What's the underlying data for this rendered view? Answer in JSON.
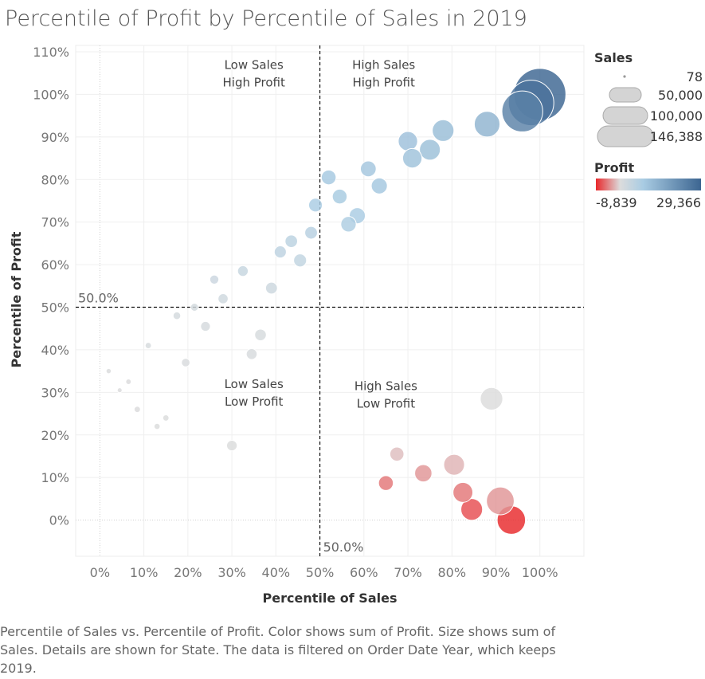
{
  "page": {
    "title": "Percentile of Profit by Percentile of Sales in 2019",
    "caption": "Percentile of Sales vs. Percentile of Profit.  Color shows sum of Profit.  Size shows sum of Sales.  Details are shown for State. The data is filtered on Order Date Year, which keeps 2019."
  },
  "legend": {
    "sales_title": "Sales",
    "sales_labels": [
      "78",
      "50,000",
      "100,000",
      "146,388"
    ],
    "profit_title": "Profit",
    "profit_min_label": "-8,839",
    "profit_max_label": "29,366"
  },
  "colors": {
    "negative": "#e8282b",
    "neutral": "#dcdcdc",
    "light_blue": "#a9cce3",
    "dark_blue": "#3c6591"
  },
  "chart_data": {
    "type": "scatter",
    "title": "Percentile of Profit by Percentile of Sales in 2019",
    "xlabel": "Percentile of Sales",
    "ylabel": "Percentile of Profit",
    "xlim": [
      -0.055,
      1.1
    ],
    "ylim": [
      -0.085,
      1.115
    ],
    "x_ticks": [
      "0%",
      "10%",
      "20%",
      "30%",
      "40%",
      "50%",
      "60%",
      "70%",
      "80%",
      "90%",
      "100%"
    ],
    "y_ticks": [
      "0%",
      "10%",
      "20%",
      "30%",
      "40%",
      "50%",
      "60%",
      "70%",
      "80%",
      "90%",
      "100%",
      "110%"
    ],
    "reference_lines": [
      {
        "axis": "x",
        "value": 0.5,
        "label": "50.0%"
      },
      {
        "axis": "y",
        "value": 0.5,
        "label": "50.0%"
      }
    ],
    "quadrant_labels": [
      {
        "line1": "Low Sales",
        "line2": "High Profit",
        "x": 0.35,
        "y": 1.06
      },
      {
        "line1": "High Sales",
        "line2": "High Profit",
        "x": 0.645,
        "y": 1.06
      },
      {
        "line1": "Low Sales",
        "line2": "Low Profit",
        "x": 0.35,
        "y": 0.31
      },
      {
        "line1": "High Sales",
        "line2": "Low Profit",
        "x": 0.65,
        "y": 0.305
      }
    ],
    "profit_range": [
      -8839,
      29366
    ],
    "sales_range": [
      78,
      146388
    ],
    "points": [
      {
        "x": 1.0,
        "y": 1.0,
        "sales": 146388,
        "profit": 29366
      },
      {
        "x": 0.98,
        "y": 0.98,
        "sales": 110000,
        "profit": 26000
      },
      {
        "x": 0.96,
        "y": 0.96,
        "sales": 88000,
        "profit": 22000
      },
      {
        "x": 0.88,
        "y": 0.93,
        "sales": 32000,
        "profit": 9000
      },
      {
        "x": 0.78,
        "y": 0.915,
        "sales": 22000,
        "profit": 6500
      },
      {
        "x": 0.7,
        "y": 0.89,
        "sales": 17000,
        "profit": 5500
      },
      {
        "x": 0.75,
        "y": 0.87,
        "sales": 20000,
        "profit": 6000
      },
      {
        "x": 0.71,
        "y": 0.85,
        "sales": 17000,
        "profit": 5000
      },
      {
        "x": 0.61,
        "y": 0.825,
        "sales": 10500,
        "profit": 4000
      },
      {
        "x": 0.52,
        "y": 0.805,
        "sales": 9000,
        "profit": 3500
      },
      {
        "x": 0.635,
        "y": 0.785,
        "sales": 11000,
        "profit": 3800
      },
      {
        "x": 0.545,
        "y": 0.76,
        "sales": 9000,
        "profit": 3000
      },
      {
        "x": 0.49,
        "y": 0.74,
        "sales": 7500,
        "profit": 2500
      },
      {
        "x": 0.585,
        "y": 0.715,
        "sales": 11000,
        "profit": 2500
      },
      {
        "x": 0.565,
        "y": 0.695,
        "sales": 10000,
        "profit": 2300
      },
      {
        "x": 0.48,
        "y": 0.675,
        "sales": 6200,
        "profit": 1800
      },
      {
        "x": 0.435,
        "y": 0.655,
        "sales": 6000,
        "profit": 1600
      },
      {
        "x": 0.41,
        "y": 0.63,
        "sales": 5500,
        "profit": 1500
      },
      {
        "x": 0.455,
        "y": 0.61,
        "sales": 6500,
        "profit": 1300
      },
      {
        "x": 0.325,
        "y": 0.585,
        "sales": 4000,
        "profit": 1100
      },
      {
        "x": 0.26,
        "y": 0.565,
        "sales": 2600,
        "profit": 900
      },
      {
        "x": 0.39,
        "y": 0.545,
        "sales": 5200,
        "profit": 800
      },
      {
        "x": 0.28,
        "y": 0.52,
        "sales": 3500,
        "profit": 700
      },
      {
        "x": 0.215,
        "y": 0.5,
        "sales": 1800,
        "profit": 500
      },
      {
        "x": 0.175,
        "y": 0.48,
        "sales": 1600,
        "profit": 450
      },
      {
        "x": 0.24,
        "y": 0.455,
        "sales": 3200,
        "profit": 400
      },
      {
        "x": 0.365,
        "y": 0.435,
        "sales": 5000,
        "profit": 350
      },
      {
        "x": 0.11,
        "y": 0.41,
        "sales": 900,
        "profit": 300
      },
      {
        "x": 0.345,
        "y": 0.39,
        "sales": 4200,
        "profit": 250
      },
      {
        "x": 0.195,
        "y": 0.37,
        "sales": 2200,
        "profit": 200
      },
      {
        "x": 0.02,
        "y": 0.35,
        "sales": 500,
        "profit": 150
      },
      {
        "x": 0.065,
        "y": 0.325,
        "sales": 600,
        "profit": 120
      },
      {
        "x": 0.045,
        "y": 0.305,
        "sales": 400,
        "profit": 100
      },
      {
        "x": 0.085,
        "y": 0.26,
        "sales": 900,
        "profit": 80
      },
      {
        "x": 0.15,
        "y": 0.24,
        "sales": 900,
        "profit": 60
      },
      {
        "x": 0.13,
        "y": 0.22,
        "sales": 800,
        "profit": 50
      },
      {
        "x": 0.3,
        "y": 0.175,
        "sales": 3900,
        "profit": 30
      },
      {
        "x": 0.89,
        "y": 0.285,
        "sales": 24000,
        "profit": 0
      },
      {
        "x": 0.675,
        "y": 0.155,
        "sales": 8000,
        "profit": -1500
      },
      {
        "x": 0.805,
        "y": 0.13,
        "sales": 20000,
        "profit": -2000
      },
      {
        "x": 0.735,
        "y": 0.11,
        "sales": 13000,
        "profit": -3500
      },
      {
        "x": 0.65,
        "y": 0.087,
        "sales": 9000,
        "profit": -5000
      },
      {
        "x": 0.825,
        "y": 0.065,
        "sales": 18000,
        "profit": -5000
      },
      {
        "x": 0.91,
        "y": 0.045,
        "sales": 38000,
        "profit": -3500
      },
      {
        "x": 0.845,
        "y": 0.025,
        "sales": 22000,
        "profit": -7000
      },
      {
        "x": 0.935,
        "y": 0.0,
        "sales": 40000,
        "profit": -8839
      }
    ]
  }
}
